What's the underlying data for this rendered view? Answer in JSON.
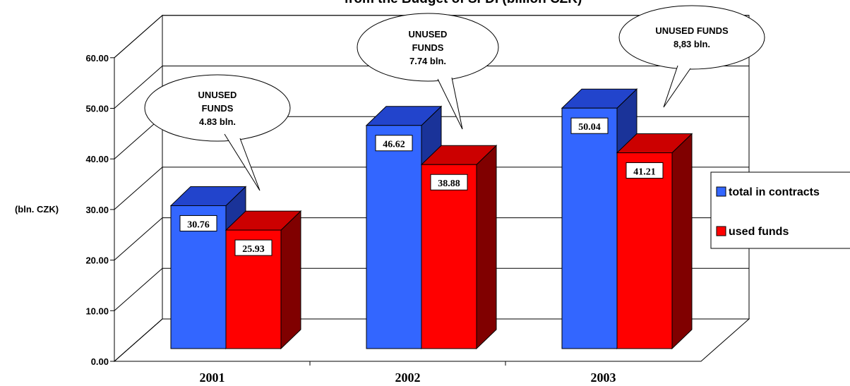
{
  "chart_data": {
    "type": "bar",
    "title": "from the Budget of SFDI (billion CZK)",
    "ylabel": "(bln. CZK)",
    "ylim": [
      0,
      60
    ],
    "yticks": [
      "0.00",
      "10.00",
      "20.00",
      "30.00",
      "40.00",
      "50.00",
      "60.00"
    ],
    "categories": [
      "2001",
      "2002",
      "2003"
    ],
    "series": [
      {
        "name": "total in contracts",
        "color": "#3366ff",
        "values": [
          30.76,
          46.62,
          50.04
        ],
        "labels": [
          "30.76",
          "46.62",
          "50.04"
        ]
      },
      {
        "name": "used funds",
        "color": "#ff0000",
        "values": [
          25.93,
          38.88,
          41.21
        ],
        "labels": [
          "25.93",
          "38.88",
          "41.21"
        ]
      }
    ],
    "annotations": [
      {
        "category": "2001",
        "lines": [
          "UNUSED",
          "FUNDS",
          "4.83 bln."
        ]
      },
      {
        "category": "2002",
        "lines": [
          "UNUSED",
          "FUNDS",
          "7.74 bln."
        ]
      },
      {
        "category": "2003",
        "lines": [
          "UNUSED FUNDS",
          "8,83 bln."
        ]
      }
    ],
    "legend": "right",
    "grid": true
  }
}
